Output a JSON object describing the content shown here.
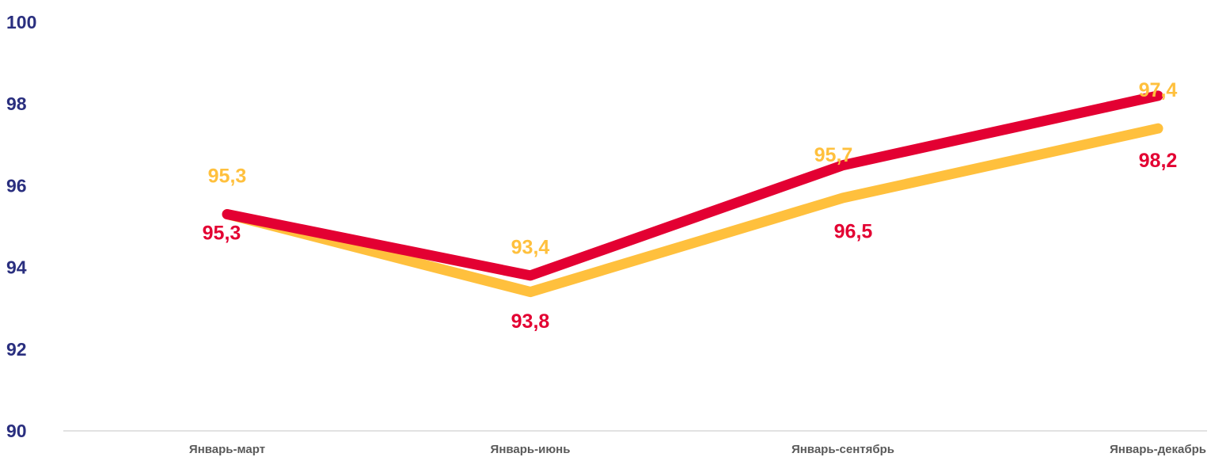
{
  "chart_data": {
    "type": "line",
    "categories": [
      "Январь-март",
      "Январь-июнь",
      "Январь-сентябрь",
      "Январь-декабрь"
    ],
    "ylim": [
      90,
      100
    ],
    "yticks": [
      90,
      92,
      94,
      96,
      98,
      100
    ],
    "grid": false,
    "series": [
      {
        "values": [
          95.3,
          93.4,
          95.7,
          97.4
        ],
        "labels": [
          "95,3",
          "93,4",
          "95,7",
          "97,4"
        ],
        "color": "#ffc03d"
      },
      {
        "values": [
          95.3,
          93.8,
          96.5,
          98.2
        ],
        "labels": [
          "95,3",
          "93,8",
          "96,5",
          "98,2"
        ],
        "color": "#e30032"
      }
    ]
  }
}
